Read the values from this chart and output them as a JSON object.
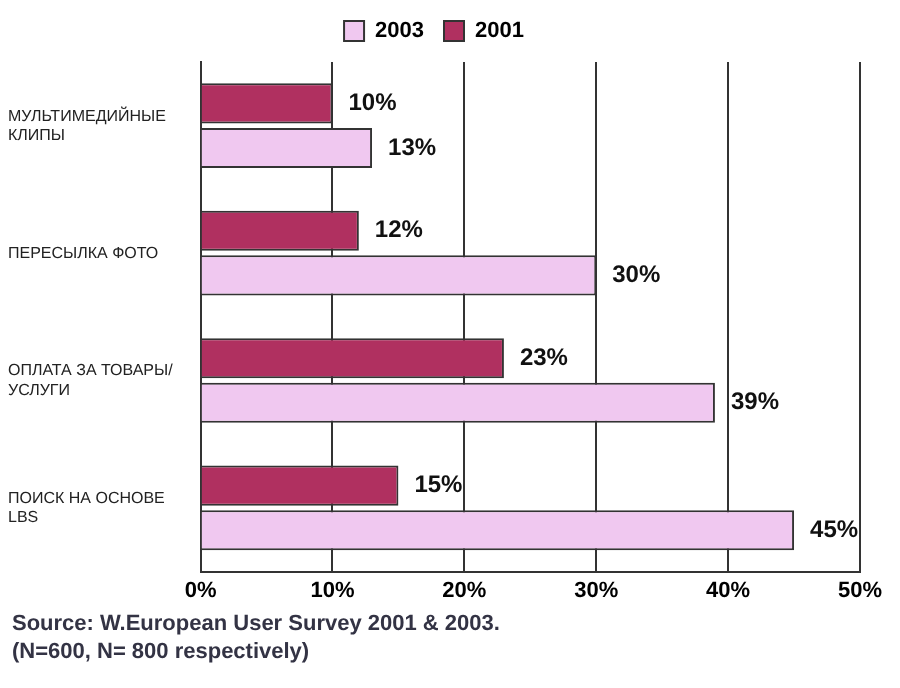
{
  "chart_data": {
    "type": "bar",
    "orientation": "horizontal",
    "categories": [
      "МУЛЬТИМЕДИЙНЫЕ КЛИПЫ",
      "ПЕРЕСЫЛКА ФОТО",
      "ОПЛАТА ЗА ТОВАРЫ/ УСЛУГИ",
      "ПОИСК НА ОСНОВЕ LBS"
    ],
    "series": [
      {
        "name": "2001",
        "color": "#b03060",
        "values": [
          10,
          12,
          23,
          15
        ],
        "value_labels": [
          "10%",
          "12%",
          "23%",
          "15%"
        ]
      },
      {
        "name": "2003",
        "color": "#f0c8f0",
        "values": [
          13,
          30,
          39,
          45
        ],
        "value_labels": [
          "13%",
          "30%",
          "39%",
          "45%"
        ]
      }
    ],
    "xlim": [
      0,
      50
    ],
    "xticks": [
      {
        "value": 0,
        "label": "0%"
      },
      {
        "value": 10,
        "label": "10%"
      },
      {
        "value": 20,
        "label": "20%"
      },
      {
        "value": 30,
        "label": "30%"
      },
      {
        "value": 40,
        "label": "40%"
      },
      {
        "value": 50,
        "label": "50%"
      }
    ],
    "grid": "x",
    "legend": "top",
    "annotations": [
      "Source: W.European User Survey 2001 & 2003.",
      "(N=600, N= 800 respectively)"
    ]
  }
}
